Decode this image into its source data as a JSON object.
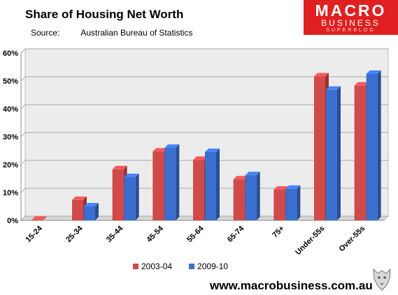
{
  "header": {
    "title": "Share of Housing Net Worth",
    "source_label": "Source:",
    "source_name": "Australian Bureau of Statistics"
  },
  "logo": {
    "line1": "MACRO",
    "line2": "BUSINESS",
    "line3": "SUPERBLOG",
    "bg_color": "#e02020"
  },
  "footer": {
    "url": "www.macrobusiness.com.au"
  },
  "colors": {
    "series_2003": "#d04a4a",
    "series_2009": "#3a6fd0",
    "plot_bg": "#ececec"
  },
  "chart_data": {
    "type": "bar",
    "title": "Share of Housing Net Worth",
    "categories": [
      "15-24",
      "25-34",
      "35-44",
      "45-54",
      "55-64",
      "65-74",
      "75+",
      "Under-55s",
      "Over-55s"
    ],
    "series": [
      {
        "name": "2003-04",
        "values": [
          0.2,
          7.3,
          18.3,
          24.7,
          21.7,
          14.7,
          11.0,
          51.6,
          48.3
        ]
      },
      {
        "name": "2009-10",
        "values": [
          0.0,
          5.0,
          15.5,
          26.0,
          24.5,
          16.2,
          11.3,
          46.8,
          52.5
        ]
      }
    ],
    "yticks": [
      "0%",
      "10%",
      "20%",
      "30%",
      "40%",
      "50%",
      "60%"
    ],
    "ylim": [
      0,
      60
    ],
    "grid": true,
    "legend_position": "bottom"
  }
}
